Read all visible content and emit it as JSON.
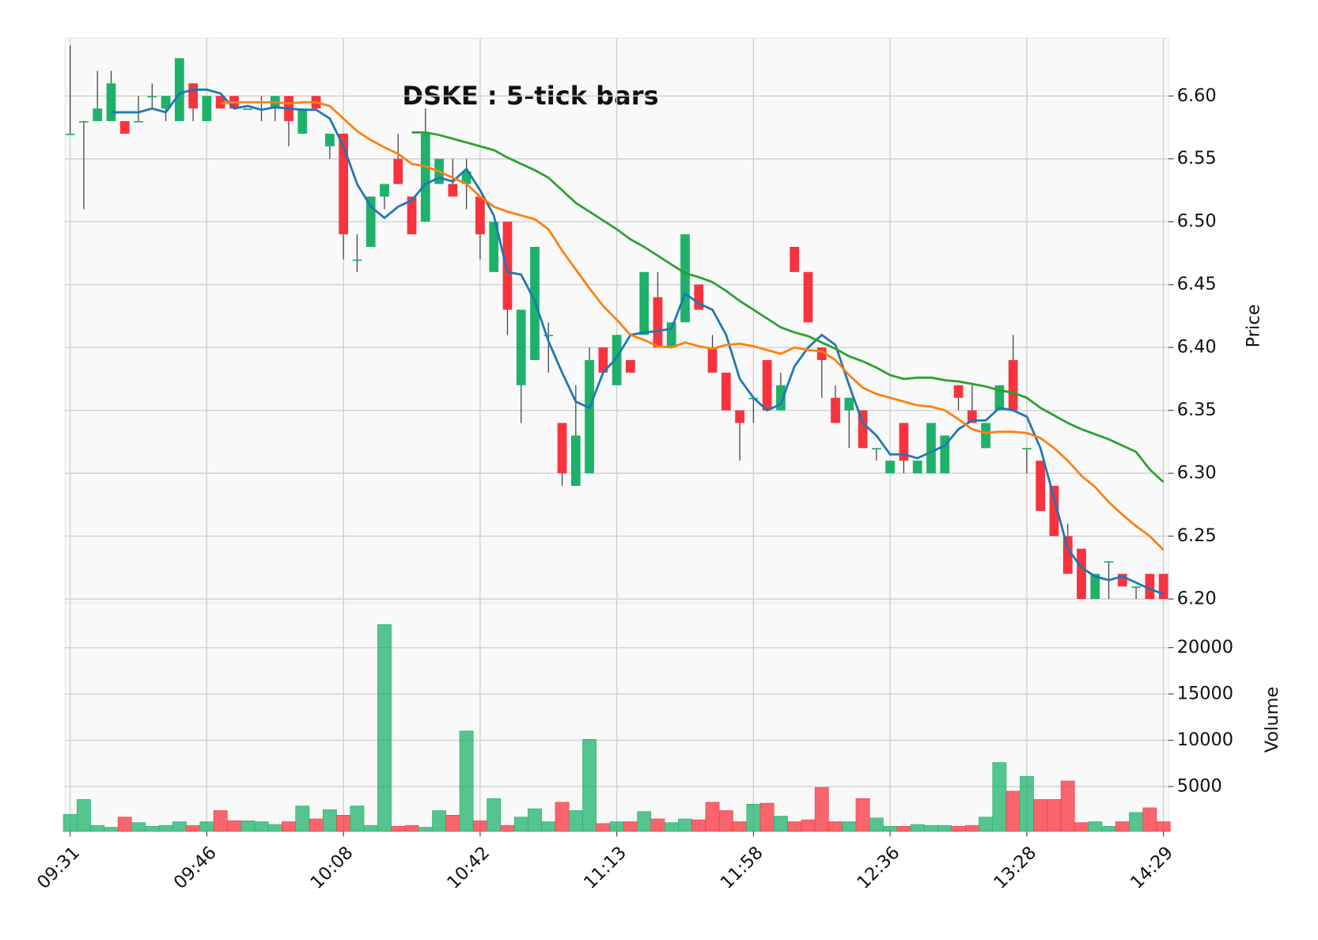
{
  "chart_data": {
    "type": "candlestick",
    "title": "DSKE : 5-tick bars",
    "ylabel": "Price",
    "volume_label": "Volume",
    "x": [
      "09:31",
      null,
      null,
      null,
      null,
      null,
      null,
      null,
      null,
      null,
      "09:46",
      null,
      null,
      null,
      null,
      null,
      null,
      null,
      null,
      null,
      "10:08",
      null,
      null,
      null,
      null,
      null,
      null,
      null,
      null,
      null,
      "10:42",
      null,
      null,
      null,
      null,
      null,
      null,
      null,
      null,
      null,
      "11:13",
      null,
      null,
      null,
      null,
      null,
      null,
      null,
      null,
      null,
      "11:58",
      null,
      null,
      null,
      null,
      null,
      null,
      null,
      null,
      null,
      "12:36",
      null,
      null,
      null,
      null,
      null,
      null,
      null,
      null,
      null,
      "13:28",
      null,
      null,
      null,
      null,
      null,
      null,
      null,
      null,
      null,
      "14:29"
    ],
    "open": [
      6.57,
      6.58,
      6.58,
      6.58,
      6.58,
      6.58,
      6.6,
      6.59,
      6.58,
      6.61,
      6.58,
      6.6,
      6.6,
      6.59,
      6.59,
      6.59,
      6.6,
      6.57,
      6.6,
      6.56,
      6.57,
      6.47,
      6.48,
      6.52,
      6.55,
      6.52,
      6.5,
      6.53,
      6.53,
      6.53,
      6.52,
      6.46,
      6.5,
      6.37,
      6.39,
      6.41,
      6.34,
      6.29,
      6.3,
      6.4,
      6.37,
      6.39,
      6.41,
      6.44,
      6.4,
      6.42,
      6.45,
      6.4,
      6.38,
      6.35,
      6.36,
      6.39,
      6.35,
      6.48,
      6.46,
      6.4,
      6.36,
      6.35,
      6.35,
      6.32,
      6.3,
      6.34,
      6.3,
      6.3,
      6.3,
      6.37,
      6.35,
      6.32,
      6.35,
      6.39,
      6.32,
      6.31,
      6.29,
      6.25,
      6.24,
      6.2,
      6.23,
      6.22,
      6.21,
      6.22,
      6.22
    ],
    "high": [
      6.64,
      6.58,
      6.62,
      6.62,
      6.58,
      6.6,
      6.61,
      6.6,
      6.63,
      6.61,
      6.6,
      6.6,
      6.6,
      6.59,
      6.6,
      6.6,
      6.6,
      6.59,
      6.6,
      6.57,
      6.57,
      6.49,
      6.52,
      6.53,
      6.57,
      6.52,
      6.59,
      6.55,
      6.55,
      6.55,
      6.52,
      6.5,
      6.5,
      6.43,
      6.48,
      6.42,
      6.34,
      6.37,
      6.4,
      6.4,
      6.41,
      6.39,
      6.46,
      6.46,
      6.42,
      6.49,
      6.45,
      6.41,
      6.38,
      6.35,
      6.36,
      6.39,
      6.38,
      6.48,
      6.46,
      6.4,
      6.37,
      6.36,
      6.35,
      6.32,
      6.31,
      6.34,
      6.31,
      6.34,
      6.33,
      6.37,
      6.37,
      6.34,
      6.37,
      6.41,
      6.32,
      6.31,
      6.29,
      6.26,
      6.24,
      6.22,
      6.23,
      6.22,
      6.21,
      6.22,
      6.22
    ],
    "low": [
      6.57,
      6.51,
      6.58,
      6.58,
      6.57,
      6.58,
      6.59,
      6.58,
      6.58,
      6.58,
      6.58,
      6.59,
      6.59,
      6.59,
      6.58,
      6.58,
      6.56,
      6.57,
      6.59,
      6.55,
      6.47,
      6.46,
      6.48,
      6.51,
      6.53,
      6.49,
      6.5,
      6.53,
      6.52,
      6.51,
      6.47,
      6.46,
      6.41,
      6.34,
      6.39,
      6.38,
      6.29,
      6.29,
      6.3,
      6.38,
      6.37,
      6.38,
      6.41,
      6.4,
      6.4,
      6.42,
      6.43,
      6.38,
      6.35,
      6.31,
      6.34,
      6.35,
      6.35,
      6.46,
      6.42,
      6.36,
      6.34,
      6.32,
      6.32,
      6.31,
      6.3,
      6.3,
      6.3,
      6.3,
      6.3,
      6.35,
      6.34,
      6.32,
      6.35,
      6.35,
      6.3,
      6.27,
      6.25,
      6.22,
      6.2,
      6.2,
      6.2,
      6.21,
      6.2,
      6.2,
      6.2
    ],
    "close": [
      6.57,
      6.58,
      6.59,
      6.61,
      6.57,
      6.58,
      6.6,
      6.6,
      6.63,
      6.59,
      6.6,
      6.59,
      6.59,
      6.59,
      6.59,
      6.6,
      6.58,
      6.59,
      6.59,
      6.57,
      6.49,
      6.47,
      6.52,
      6.53,
      6.53,
      6.49,
      6.57,
      6.55,
      6.52,
      6.54,
      6.49,
      6.5,
      6.43,
      6.43,
      6.48,
      6.41,
      6.3,
      6.33,
      6.39,
      6.38,
      6.41,
      6.38,
      6.46,
      6.4,
      6.42,
      6.49,
      6.43,
      6.38,
      6.35,
      6.34,
      6.36,
      6.35,
      6.37,
      6.46,
      6.42,
      6.39,
      6.34,
      6.36,
      6.32,
      6.32,
      6.31,
      6.31,
      6.31,
      6.34,
      6.33,
      6.36,
      6.34,
      6.34,
      6.37,
      6.35,
      6.32,
      6.27,
      6.25,
      6.22,
      6.2,
      6.22,
      6.23,
      6.21,
      6.21,
      6.2,
      6.2
    ],
    "volume": [
      2000,
      3600,
      800,
      600,
      1700,
      1100,
      700,
      800,
      1200,
      800,
      1200,
      2400,
      1300,
      1300,
      1200,
      900,
      1200,
      2900,
      1500,
      2500,
      1900,
      2900,
      800,
      22500,
      700,
      800,
      600,
      2400,
      1900,
      11000,
      1300,
      3700,
      800,
      1700,
      2600,
      1200,
      3300,
      2400,
      10100,
      1000,
      1200,
      1200,
      2300,
      1500,
      1100,
      1500,
      1400,
      3300,
      2400,
      1200,
      3100,
      3200,
      1800,
      1200,
      1400,
      4900,
      1200,
      1200,
      3700,
      1600,
      700,
      700,
      900,
      800,
      800,
      700,
      800,
      1700,
      7600,
      4500,
      6100,
      3600,
      3600,
      5600,
      1100,
      1200,
      700,
      1200,
      2200,
      2700,
      1200
    ],
    "series": [
      {
        "color": "#1f77b4",
        "values": [
          null,
          null,
          null,
          6.587,
          6.587,
          6.587,
          6.59,
          6.587,
          6.602,
          6.605,
          6.605,
          6.602,
          6.59,
          6.592,
          6.589,
          6.591,
          6.59,
          6.589,
          6.589,
          6.582,
          6.56,
          6.53,
          6.512,
          6.503,
          6.512,
          6.517,
          6.53,
          6.535,
          6.532,
          6.542,
          6.525,
          6.505,
          6.46,
          6.458,
          6.437,
          6.405,
          6.38,
          6.357,
          6.352,
          6.38,
          6.392,
          6.41,
          6.412,
          6.413,
          6.415,
          6.443,
          6.435,
          6.43,
          6.41,
          6.375,
          6.36,
          6.35,
          6.355,
          6.385,
          6.4,
          6.41,
          6.402,
          6.37,
          6.34,
          6.33,
          6.315,
          6.315,
          6.312,
          6.317,
          6.322,
          6.335,
          6.342,
          6.342,
          6.352,
          6.35,
          6.345,
          6.32,
          6.28,
          6.24,
          6.225,
          6.218,
          6.215,
          6.218,
          6.213,
          6.208,
          6.204
        ]
      },
      {
        "color": "#ff7f0e",
        "values": [
          null,
          null,
          null,
          null,
          null,
          null,
          null,
          null,
          null,
          null,
          null,
          6.594,
          6.595,
          6.595,
          6.595,
          6.595,
          6.594,
          6.595,
          6.595,
          6.592,
          6.582,
          6.572,
          6.565,
          6.559,
          6.554,
          6.546,
          6.544,
          6.54,
          6.535,
          6.53,
          6.52,
          6.512,
          6.508,
          6.505,
          6.502,
          6.494,
          6.477,
          6.462,
          6.447,
          6.433,
          6.422,
          6.41,
          6.406,
          6.401,
          6.4,
          6.404,
          6.401,
          6.399,
          6.402,
          6.403,
          6.401,
          6.398,
          6.395,
          6.4,
          6.398,
          6.397,
          6.39,
          6.378,
          6.368,
          6.363,
          6.36,
          6.357,
          6.354,
          6.353,
          6.35,
          6.343,
          6.335,
          6.332,
          6.333,
          6.333,
          6.332,
          6.328,
          6.32,
          6.31,
          6.298,
          6.289,
          6.277,
          6.267,
          6.258,
          6.25,
          6.239
        ]
      },
      {
        "color": "#2ca02c",
        "values": [
          null,
          null,
          null,
          null,
          null,
          null,
          null,
          null,
          null,
          null,
          null,
          null,
          null,
          null,
          null,
          null,
          null,
          null,
          null,
          null,
          null,
          null,
          null,
          null,
          null,
          6.571,
          6.571,
          6.569,
          6.566,
          6.563,
          6.56,
          6.557,
          6.551,
          6.546,
          6.541,
          6.535,
          6.525,
          6.515,
          6.508,
          6.501,
          6.494,
          6.486,
          6.48,
          6.473,
          6.466,
          6.459,
          6.456,
          6.452,
          6.445,
          6.437,
          6.43,
          6.423,
          6.416,
          6.412,
          6.409,
          6.404,
          6.399,
          6.393,
          6.389,
          6.384,
          6.378,
          6.375,
          6.376,
          6.376,
          6.374,
          6.373,
          6.371,
          6.369,
          6.366,
          6.364,
          6.36,
          6.352,
          6.346,
          6.34,
          6.335,
          6.331,
          6.327,
          6.322,
          6.317,
          6.303,
          6.293
        ]
      }
    ],
    "up_color": "#1db16a",
    "down_color": "#f7333e",
    "ylim": [
      6.197,
      6.646
    ],
    "yticks": [
      {
        "value": 6.2,
        "label": "6.20"
      },
      6.25,
      {
        "value": 6.3,
        "label": "6.30"
      },
      6.35,
      {
        "value": 6.4,
        "label": "6.40"
      },
      6.45,
      {
        "value": 6.5,
        "label": "6.50"
      },
      6.55,
      {
        "value": 6.6,
        "label": "6.60"
      }
    ],
    "volume_ylim": [
      150,
      24850
    ],
    "volume_yticks": [
      5000,
      10000,
      15000,
      20000
    ],
    "grid": true
  }
}
